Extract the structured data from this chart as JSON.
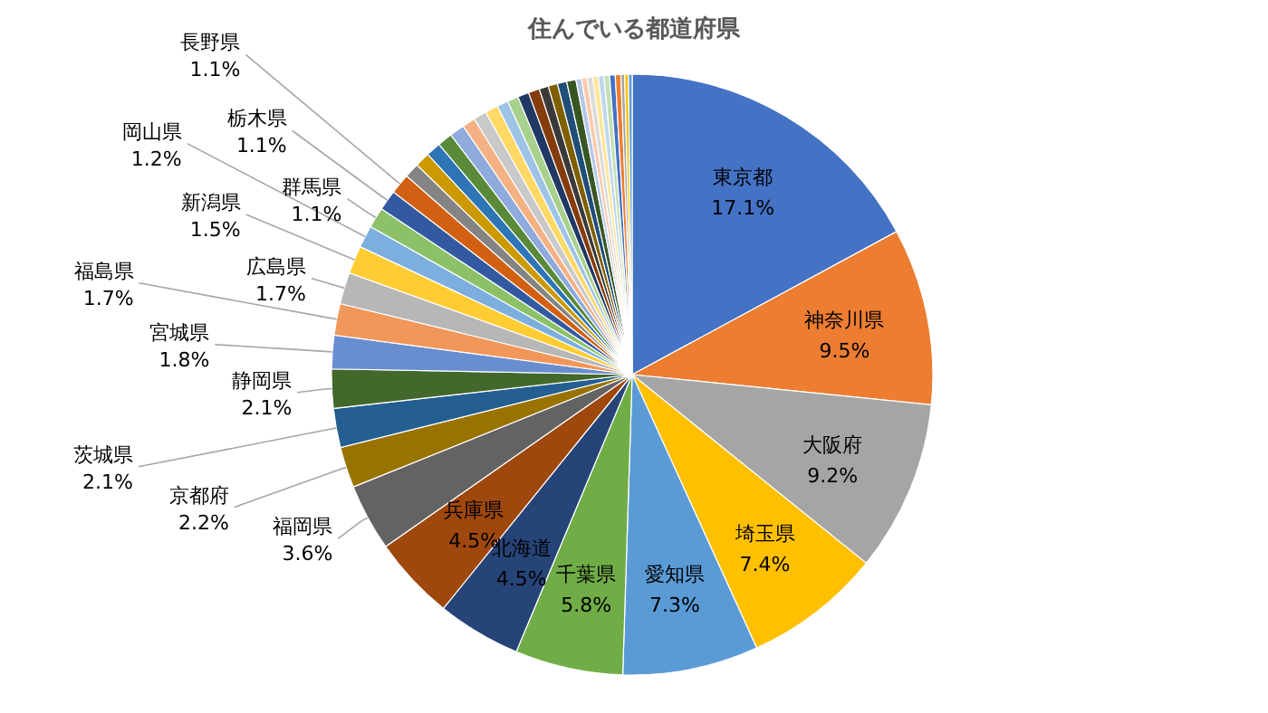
{
  "chart_data": {
    "type": "pie",
    "title": "住んでいる都道府県",
    "categories": [
      "東京都",
      "神奈川県",
      "大阪府",
      "埼玉県",
      "愛知県",
      "千葉県",
      "北海道",
      "兵庫県",
      "福岡県",
      "京都府",
      "茨城県",
      "静岡県",
      "宮城県",
      "福島県",
      "広島県",
      "新潟県",
      "岡山県",
      "群馬県",
      "栃木県",
      "長野県",
      null,
      null,
      null,
      null,
      null,
      null,
      null,
      null,
      null,
      null,
      null,
      null,
      null,
      null,
      null,
      null,
      null,
      null,
      null,
      null,
      null,
      null,
      null,
      null,
      null,
      null,
      null
    ],
    "values": [
      17.1,
      9.5,
      9.2,
      7.4,
      7.3,
      5.8,
      4.5,
      4.5,
      3.6,
      2.2,
      2.1,
      2.1,
      1.8,
      1.7,
      1.7,
      1.5,
      1.2,
      1.1,
      1.1,
      1.1,
      0.8,
      0.8,
      0.8,
      0.8,
      0.8,
      0.7,
      0.7,
      0.7,
      0.6,
      0.6,
      0.6,
      0.6,
      0.5,
      0.5,
      0.5,
      0.5,
      0.3,
      0.3,
      0.3,
      0.3,
      0.3,
      0.3,
      0.3,
      0.3,
      0.2,
      0.2,
      0.2
    ],
    "colors": [
      "#4472c4",
      "#ed7d31",
      "#a5a5a5",
      "#ffc000",
      "#5b9bd5",
      "#70ad47",
      "#264478",
      "#9e480e",
      "#636363",
      "#997300",
      "#255e91",
      "#43682b",
      "#698ed0",
      "#f1975a",
      "#b7b7b7",
      "#ffcd33",
      "#7cafdd",
      "#8cc168",
      "#335aa1",
      "#d26012",
      "#848484",
      "#cc9a00",
      "#2e75b6",
      "#5a8a39",
      "#8faadc",
      "#f4b183",
      "#c9c9c9",
      "#ffd966",
      "#9dc3e6",
      "#a9d18e",
      "#203864",
      "#843c0c",
      "#3a3a3a",
      "#7f6000",
      "#1f4e79",
      "#375623",
      "#b4c7e7",
      "#f8cbad",
      "#dbdbdb",
      "#ffe699",
      "#bdd7ee",
      "#c5e0b4",
      "#4472c4",
      "#ed7d31",
      "#a5a5a5",
      "#ffc000",
      "#5b9bd5"
    ],
    "value_labels": [
      "17.1%",
      "9.5%",
      "9.2%",
      "7.4%",
      "7.3%",
      "5.8%",
      "4.5%",
      "4.5%",
      "3.6%",
      "2.2%",
      "2.1%",
      "2.1%",
      "1.8%",
      "1.7%",
      "1.7%",
      "1.5%",
      "1.2%",
      "1.1%",
      "1.1%",
      "1.1%",
      null,
      null,
      null,
      null,
      null,
      null,
      null,
      null,
      null,
      null,
      null,
      null,
      null,
      null,
      null,
      null,
      null,
      null,
      null,
      null,
      null,
      null,
      null,
      null,
      null,
      null,
      null
    ]
  }
}
